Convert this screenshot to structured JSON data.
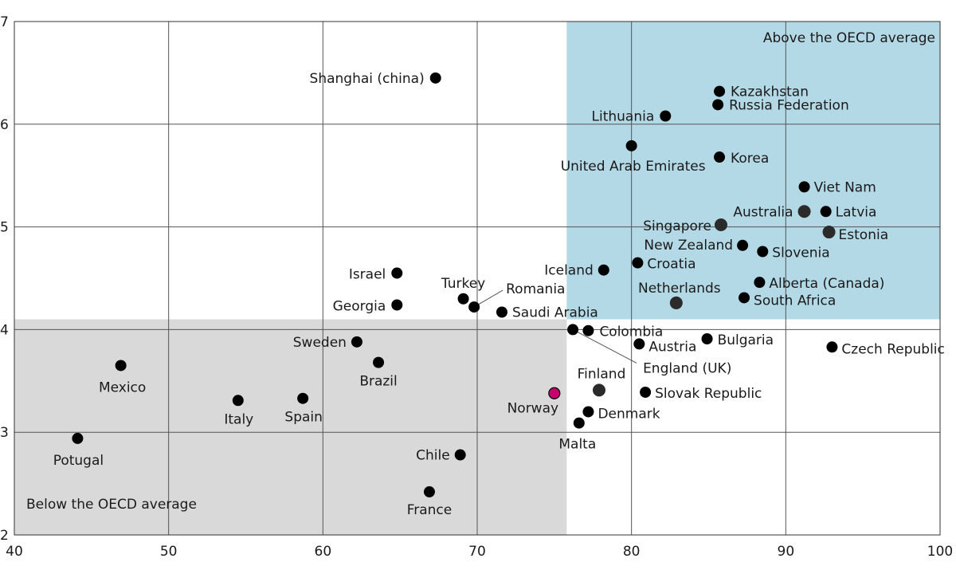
{
  "chart_data": {
    "type": "scatter",
    "title": "",
    "xlabel": "",
    "ylabel": "",
    "xlim": [
      40,
      100
    ],
    "ylim": [
      2,
      7
    ],
    "xticks": [
      40,
      50,
      60,
      70,
      80,
      90,
      100
    ],
    "yticks": [
      2,
      3,
      4,
      5,
      6,
      7
    ],
    "grid": true,
    "colors": {
      "default": "#000000",
      "highlight": "#c4006e",
      "grey_dot": "#2b2b2b",
      "above_region": "#b3d9e6",
      "below_region": "#d9d9d9"
    },
    "regions": [
      {
        "label": "Above the OECD average",
        "x": [
          75.8,
          100
        ],
        "y": [
          4.1,
          7
        ]
      },
      {
        "label": "Below the OECD average",
        "x": [
          40,
          75.8
        ],
        "y": [
          2,
          4.1
        ]
      }
    ],
    "points": [
      {
        "name": "Shanghai (china)",
        "x": 67.3,
        "y": 6.45,
        "style": "default"
      },
      {
        "name": "Kazakhstan",
        "x": 85.7,
        "y": 6.32,
        "style": "default"
      },
      {
        "name": "Russia Federation",
        "x": 85.6,
        "y": 6.19,
        "style": "default"
      },
      {
        "name": "Lithuania",
        "x": 82.2,
        "y": 6.08,
        "style": "default"
      },
      {
        "name": "United Arab Emirates",
        "x": 80.0,
        "y": 5.79,
        "style": "default"
      },
      {
        "name": "Korea",
        "x": 85.7,
        "y": 5.68,
        "style": "default"
      },
      {
        "name": "Viet Nam",
        "x": 91.2,
        "y": 5.39,
        "style": "default"
      },
      {
        "name": "Australia",
        "x": 91.2,
        "y": 5.15,
        "style": "grey"
      },
      {
        "name": "Latvia",
        "x": 92.6,
        "y": 5.15,
        "style": "default"
      },
      {
        "name": "Singapore",
        "x": 85.8,
        "y": 5.02,
        "style": "grey"
      },
      {
        "name": "Estonia",
        "x": 92.8,
        "y": 4.95,
        "style": "grey"
      },
      {
        "name": "New Zealand",
        "x": 87.2,
        "y": 4.82,
        "style": "default"
      },
      {
        "name": "Slovenia",
        "x": 88.5,
        "y": 4.76,
        "style": "default"
      },
      {
        "name": "Croatia",
        "x": 80.4,
        "y": 4.65,
        "style": "default"
      },
      {
        "name": "Iceland",
        "x": 78.2,
        "y": 4.58,
        "style": "default"
      },
      {
        "name": "Alberta (Canada)",
        "x": 88.3,
        "y": 4.46,
        "style": "default"
      },
      {
        "name": "Netherlands",
        "x": 82.9,
        "y": 4.26,
        "style": "grey"
      },
      {
        "name": "South Africa",
        "x": 87.3,
        "y": 4.31,
        "style": "default"
      },
      {
        "name": "Israel",
        "x": 64.8,
        "y": 4.55,
        "style": "default"
      },
      {
        "name": "Georgia",
        "x": 64.8,
        "y": 4.24,
        "style": "default"
      },
      {
        "name": "Turkey",
        "x": 69.1,
        "y": 4.3,
        "style": "default"
      },
      {
        "name": "Romania",
        "x": 69.8,
        "y": 4.22,
        "style": "default"
      },
      {
        "name": "Saudi Arabia",
        "x": 71.6,
        "y": 4.17,
        "style": "default"
      },
      {
        "name": "England (UK)",
        "x": 76.2,
        "y": 4.0,
        "style": "default"
      },
      {
        "name": "Colombia",
        "x": 77.2,
        "y": 3.99,
        "style": "default"
      },
      {
        "name": "Austria",
        "x": 80.5,
        "y": 3.86,
        "style": "default"
      },
      {
        "name": "Bulgaria",
        "x": 84.9,
        "y": 3.91,
        "style": "default"
      },
      {
        "name": "Czech Republic",
        "x": 93.0,
        "y": 3.83,
        "style": "default"
      },
      {
        "name": "Sweden",
        "x": 62.2,
        "y": 3.88,
        "style": "default"
      },
      {
        "name": "Brazil",
        "x": 63.6,
        "y": 3.68,
        "style": "default"
      },
      {
        "name": "Mexico",
        "x": 46.9,
        "y": 3.65,
        "style": "default"
      },
      {
        "name": "Italy",
        "x": 54.5,
        "y": 3.31,
        "style": "default"
      },
      {
        "name": "Spain",
        "x": 58.7,
        "y": 3.33,
        "style": "default"
      },
      {
        "name": "Potugal",
        "x": 44.1,
        "y": 2.94,
        "style": "default"
      },
      {
        "name": "Chile",
        "x": 68.9,
        "y": 2.78,
        "style": "default"
      },
      {
        "name": "France",
        "x": 66.9,
        "y": 2.42,
        "style": "default"
      },
      {
        "name": "Norway",
        "x": 75.0,
        "y": 3.38,
        "style": "highlight"
      },
      {
        "name": "Finland",
        "x": 77.9,
        "y": 3.41,
        "style": "grey"
      },
      {
        "name": "Slovak Republic",
        "x": 80.9,
        "y": 3.39,
        "style": "default"
      },
      {
        "name": "Denmark",
        "x": 77.2,
        "y": 3.2,
        "style": "default"
      },
      {
        "name": "Malta",
        "x": 76.6,
        "y": 3.09,
        "style": "default"
      }
    ]
  }
}
